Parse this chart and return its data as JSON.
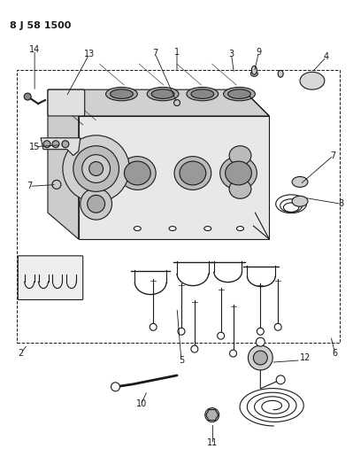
{
  "title": "8 J 58 1500",
  "bg_color": "#ffffff",
  "line_color": "#1a1a1a",
  "fig_width": 3.99,
  "fig_height": 5.33,
  "dpi": 100,
  "gray_light": "#d8d8d8",
  "gray_mid": "#b8b8b8",
  "gray_dark": "#909090"
}
